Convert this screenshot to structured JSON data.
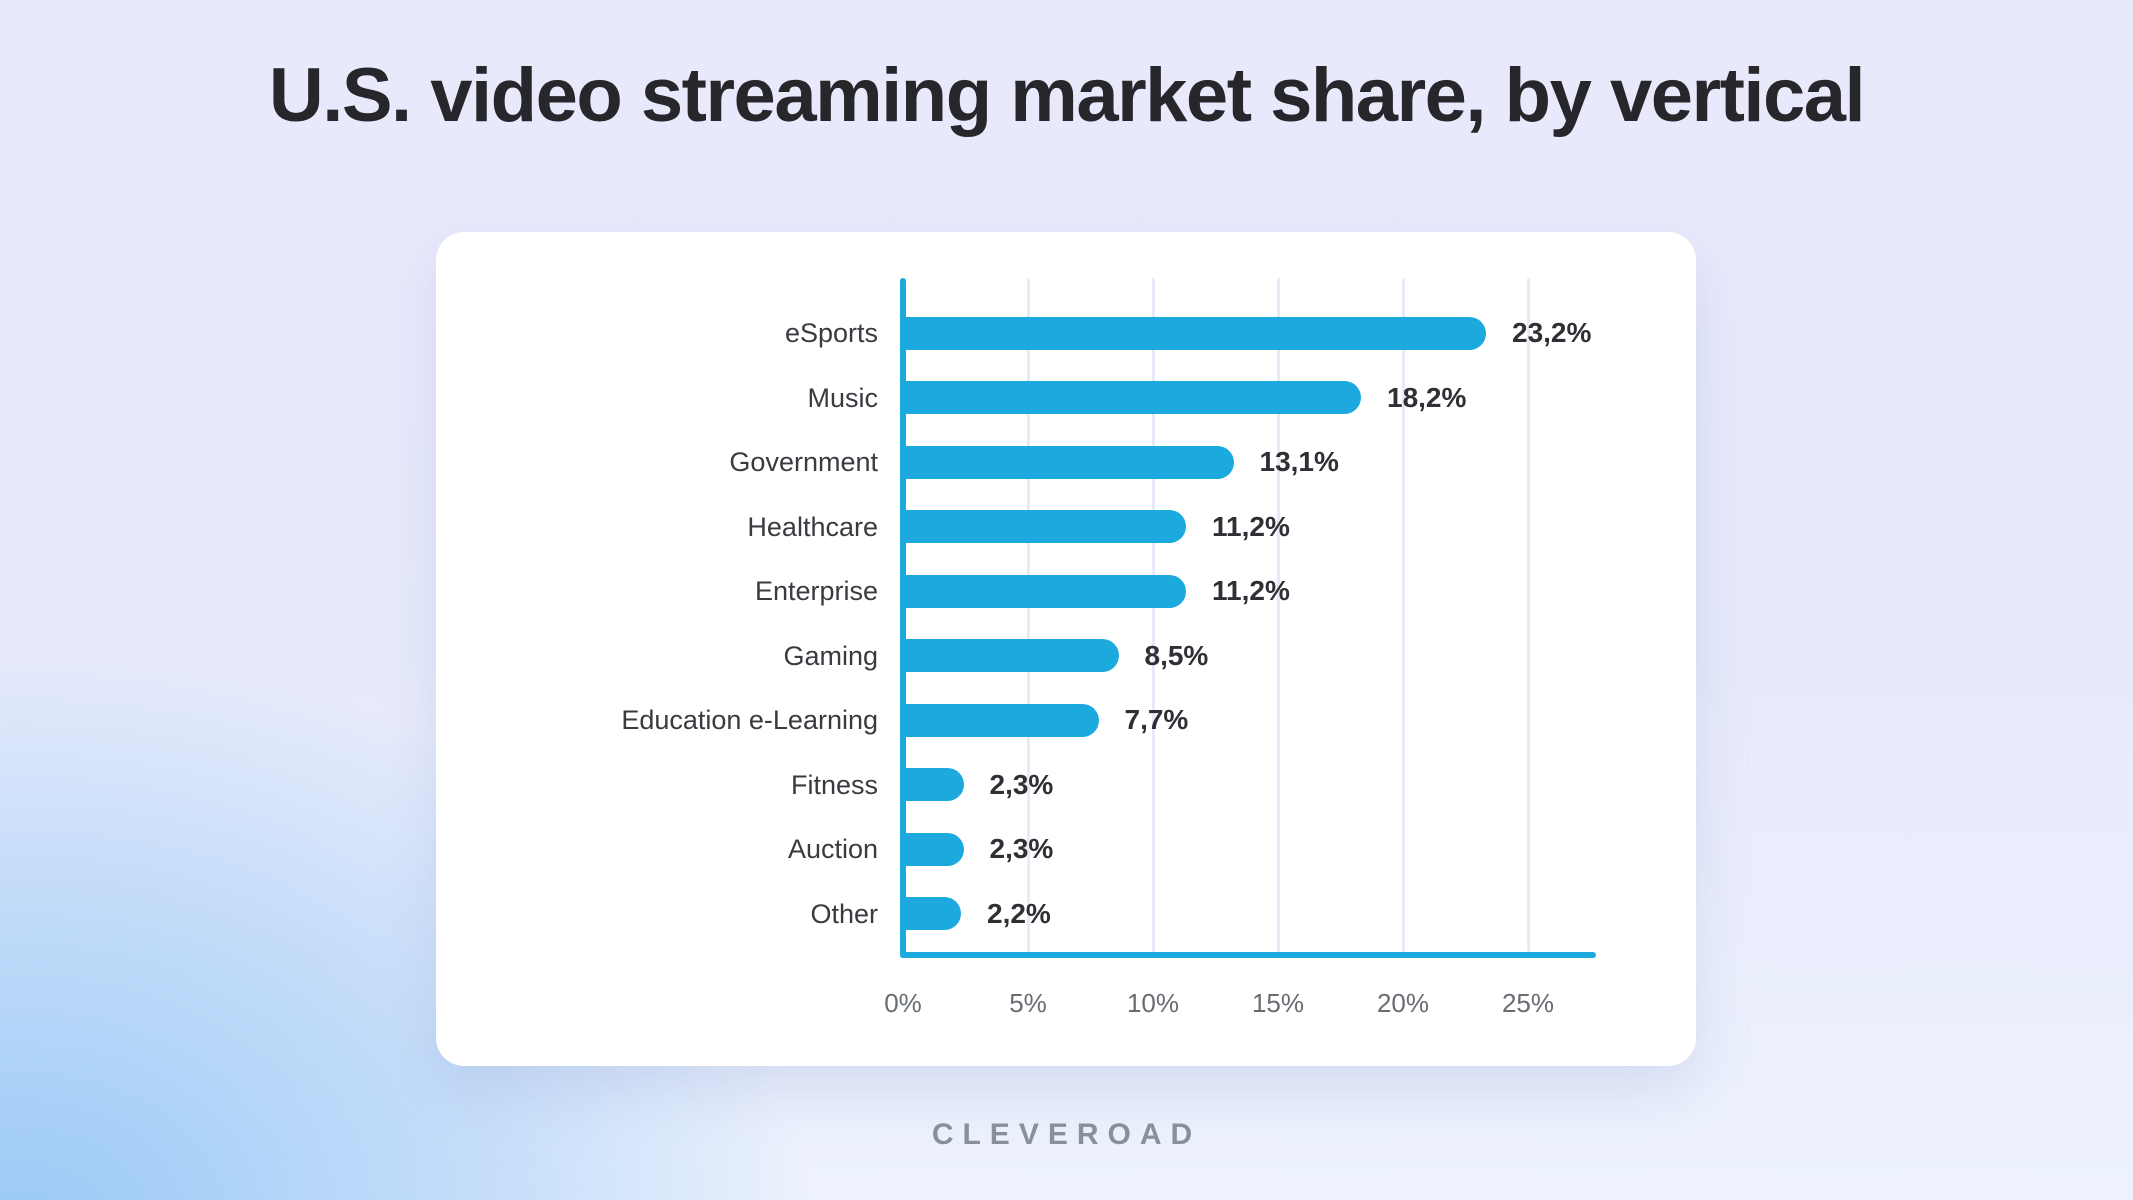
{
  "title": "U.S. video streaming market share, by vertical",
  "footer": {
    "brand": "CLEVEROAD"
  },
  "colors": {
    "bar": "#1CA9DE",
    "axis": "#1CA9DE",
    "gridline": "#E7EAF9",
    "title_text": "#26262B",
    "category_text": "#3A3A40",
    "value_text": "#2F2F35",
    "tick_text": "#686C73",
    "card_background": "#FFFFFF",
    "logo_text": "#8A909B",
    "background_top": "#E9E9FC",
    "background_bottom_left": "#A8CFF7",
    "background_bottom_right": "#EEF3FD"
  },
  "chart_data": {
    "type": "bar",
    "orientation": "horizontal",
    "title": "U.S. video streaming market share, by vertical",
    "categories": [
      "eSports",
      "Music",
      "Government",
      "Healthcare",
      "Enterprise",
      "Gaming",
      "Education e-Learning",
      "Fitness",
      "Auction",
      "Other"
    ],
    "values": [
      23.2,
      18.2,
      13.1,
      11.2,
      11.2,
      8.5,
      7.7,
      2.3,
      2.3,
      2.2
    ],
    "value_labels": [
      "23,2%",
      "18,2%",
      "13,1%",
      "11,2%",
      "11,2%",
      "8,5%",
      "7,7%",
      "2,3%",
      "2,3%",
      "2,2%"
    ],
    "xlabel": "",
    "ylabel": "",
    "x_ticks": [
      "0%",
      "5%",
      "10%",
      "15%",
      "20%",
      "25%"
    ],
    "x_tick_values": [
      0,
      5,
      10,
      15,
      20,
      25
    ],
    "xlim": [
      0,
      27.6
    ],
    "grid": true,
    "legend": false,
    "value_labels_position": "end-of-bar",
    "bar_color": "#1CA9DE"
  }
}
